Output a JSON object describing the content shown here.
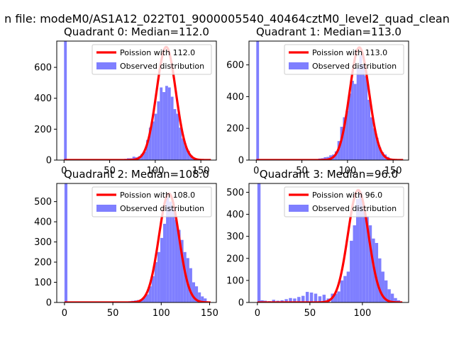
{
  "figure": {
    "suptitle": "n file: modeM0/AS1A12_022T01_9000005540_40464cztM0_level2_quad_clean"
  },
  "chart_data": [
    {
      "type": "histogram",
      "title": "Quadrant 0: Median=112.0",
      "xlim": [
        -8,
        167
      ],
      "ylim": [
        0,
        770
      ],
      "xticks": [
        0,
        50,
        100,
        150
      ],
      "yticks": [
        0,
        200,
        400,
        600
      ],
      "legend": [
        "Poission with 112.0",
        "Observed distribution"
      ],
      "legend_position": "upper right",
      "hist_color": "#7f7fff",
      "curve_color": "#ff0000",
      "mean": 112,
      "peak": 732,
      "bin_width": 3,
      "hist": [
        [
          0,
          770
        ],
        [
          60,
          3
        ],
        [
          63,
          5
        ],
        [
          66,
          8
        ],
        [
          69,
          12
        ],
        [
          72,
          12
        ],
        [
          75,
          22
        ],
        [
          78,
          18
        ],
        [
          81,
          25
        ],
        [
          84,
          40
        ],
        [
          87,
          55
        ],
        [
          90,
          130
        ],
        [
          93,
          210
        ],
        [
          96,
          250
        ],
        [
          99,
          300
        ],
        [
          102,
          380
        ],
        [
          105,
          470
        ],
        [
          108,
          440
        ],
        [
          111,
          480
        ],
        [
          114,
          470
        ],
        [
          117,
          410
        ],
        [
          120,
          330
        ],
        [
          123,
          300
        ],
        [
          126,
          210
        ],
        [
          129,
          140
        ],
        [
          132,
          90
        ],
        [
          135,
          60
        ],
        [
          138,
          30
        ],
        [
          141,
          15
        ],
        [
          144,
          8
        ],
        [
          147,
          4
        ]
      ]
    },
    {
      "type": "histogram",
      "title": "Quadrant 1: Median=113.0",
      "xlim": [
        -8,
        167
      ],
      "ylim": [
        0,
        750
      ],
      "xticks": [
        0,
        50,
        100,
        150
      ],
      "yticks": [
        0,
        200,
        400,
        600
      ],
      "legend": [
        "Poission with 113.0",
        "Observed distribution"
      ],
      "legend_position": "upper right",
      "hist_color": "#7f7fff",
      "curve_color": "#ff0000",
      "mean": 113,
      "peak": 710,
      "bin_width": 3,
      "hist": [
        [
          0,
          750
        ],
        [
          65,
          5
        ],
        [
          68,
          10
        ],
        [
          71,
          12
        ],
        [
          74,
          18
        ],
        [
          77,
          20
        ],
        [
          80,
          30
        ],
        [
          83,
          35
        ],
        [
          86,
          55
        ],
        [
          89,
          120
        ],
        [
          92,
          210
        ],
        [
          95,
          270
        ],
        [
          98,
          310
        ],
        [
          101,
          420
        ],
        [
          104,
          500
        ],
        [
          107,
          480
        ],
        [
          110,
          580
        ],
        [
          113,
          660
        ],
        [
          116,
          600
        ],
        [
          119,
          530
        ],
        [
          122,
          380
        ],
        [
          125,
          270
        ],
        [
          128,
          200
        ],
        [
          131,
          140
        ],
        [
          134,
          80
        ],
        [
          137,
          50
        ],
        [
          140,
          35
        ],
        [
          143,
          20
        ],
        [
          146,
          10
        ],
        [
          149,
          6
        ]
      ]
    },
    {
      "type": "histogram",
      "title": "Quadrant 2: Median=108.0",
      "xlim": [
        -8,
        157
      ],
      "ylim": [
        0,
        590
      ],
      "xticks": [
        0,
        50,
        100,
        150
      ],
      "yticks": [
        0,
        100,
        200,
        300,
        400,
        500
      ],
      "legend": [
        "Poission with 108.0",
        "Observed distribution"
      ],
      "legend_position": "upper right",
      "hist_color": "#7f7fff",
      "curve_color": "#ff0000",
      "mean": 108,
      "peak": 540,
      "bin_width": 3,
      "hist": [
        [
          0,
          590
        ],
        [
          60,
          2
        ],
        [
          63,
          4
        ],
        [
          66,
          6
        ],
        [
          69,
          8
        ],
        [
          72,
          10
        ],
        [
          75,
          12
        ],
        [
          78,
          15
        ],
        [
          81,
          25
        ],
        [
          84,
          40
        ],
        [
          87,
          80
        ],
        [
          90,
          130
        ],
        [
          93,
          200
        ],
        [
          96,
          250
        ],
        [
          99,
          320
        ],
        [
          102,
          390
        ],
        [
          105,
          520
        ],
        [
          108,
          500
        ],
        [
          111,
          470
        ],
        [
          114,
          410
        ],
        [
          117,
          360
        ],
        [
          120,
          310
        ],
        [
          123,
          250
        ],
        [
          126,
          220
        ],
        [
          129,
          170
        ],
        [
          132,
          100
        ],
        [
          135,
          80
        ],
        [
          138,
          50
        ],
        [
          141,
          30
        ],
        [
          144,
          20
        ]
      ]
    },
    {
      "type": "histogram",
      "title": "Quadrant 3: Median=96.0",
      "xlim": [
        -8,
        144
      ],
      "ylim": [
        0,
        540
      ],
      "xticks": [
        0,
        50,
        100
      ],
      "yticks": [
        0,
        100,
        200,
        300,
        400,
        500
      ],
      "legend": [
        "Poission with 96.0",
        "Observed distribution"
      ],
      "legend_position": "upper right",
      "hist_color": "#7f7fff",
      "curve_color": "#ff0000",
      "mean": 96,
      "peak": 510,
      "bin_width": 3,
      "hist": [
        [
          0,
          540
        ],
        [
          3,
          10
        ],
        [
          6,
          8
        ],
        [
          10,
          6
        ],
        [
          14,
          12
        ],
        [
          18,
          8
        ],
        [
          22,
          10
        ],
        [
          26,
          15
        ],
        [
          30,
          20
        ],
        [
          34,
          18
        ],
        [
          38,
          25
        ],
        [
          42,
          30
        ],
        [
          46,
          48
        ],
        [
          50,
          45
        ],
        [
          54,
          40
        ],
        [
          58,
          28
        ],
        [
          62,
          35
        ],
        [
          66,
          18
        ],
        [
          70,
          40
        ],
        [
          73,
          40
        ],
        [
          76,
          50
        ],
        [
          79,
          100
        ],
        [
          82,
          120
        ],
        [
          85,
          140
        ],
        [
          88,
          280
        ],
        [
          91,
          350
        ],
        [
          94,
          470
        ],
        [
          97,
          500
        ],
        [
          100,
          420
        ],
        [
          103,
          390
        ],
        [
          106,
          350
        ],
        [
          109,
          290
        ],
        [
          112,
          270
        ],
        [
          115,
          200
        ],
        [
          118,
          140
        ],
        [
          121,
          100
        ],
        [
          124,
          60
        ],
        [
          127,
          40
        ],
        [
          130,
          20
        ],
        [
          133,
          10
        ]
      ]
    }
  ]
}
